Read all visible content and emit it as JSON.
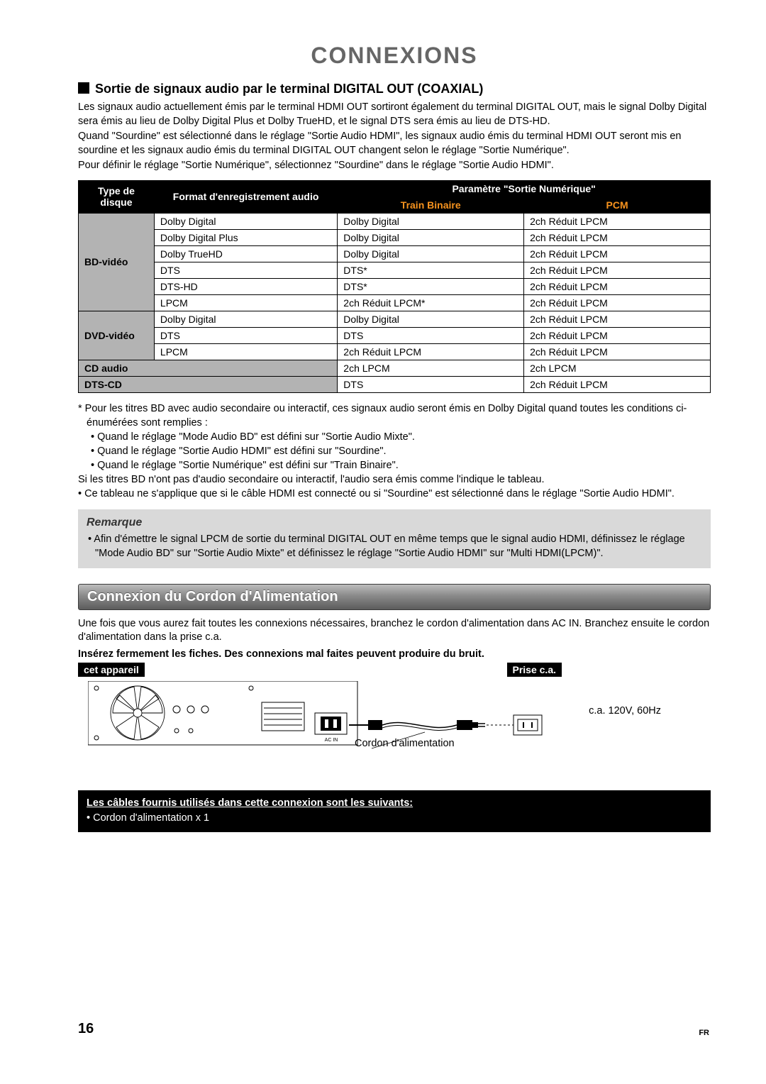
{
  "title": "CONNEXIONS",
  "subhead": "Sortie de signaux audio par le terminal DIGITAL OUT (COAXIAL)",
  "intro": [
    "Les signaux audio actuellement émis par le terminal HDMI OUT sortiront également du terminal DIGITAL OUT, mais le signal Dolby Digital sera émis au lieu de Dolby Digital Plus et Dolby TrueHD, et le signal DTS sera émis au lieu de DTS-HD.",
    "Quand \"Sourdine\" est sélectionné dans le réglage \"Sortie Audio HDMI\", les signaux audio émis du terminal HDMI OUT seront mis en sourdine et les signaux audio émis du terminal DIGITAL OUT changent selon le réglage \"Sortie Numérique\".",
    "Pour définir le réglage \"Sortie Numérique\", sélectionnez \"Sourdine\" dans le réglage \"Sortie Audio HDMI\"."
  ],
  "table": {
    "headers": {
      "disc": "Type de disque",
      "format": "Format d'enregistrement audio",
      "param": "Paramètre \"Sortie Numérique\"",
      "bin": "Train Binaire",
      "pcm": "PCM"
    },
    "header_colors": {
      "white": "#ffffff",
      "orange": "#f7931e",
      "bg": "#000000"
    },
    "disc_bg": "#b3b3b3",
    "col_widths": [
      "12%",
      "29%",
      "29.5%",
      "29.5%"
    ],
    "groups": [
      {
        "disc": "BD-vidéo",
        "rows": [
          [
            "Dolby Digital",
            "Dolby Digital",
            "2ch Réduit LPCM"
          ],
          [
            "Dolby Digital Plus",
            "Dolby Digital",
            "2ch Réduit LPCM"
          ],
          [
            "Dolby TrueHD",
            "Dolby Digital",
            "2ch Réduit LPCM"
          ],
          [
            "DTS",
            "DTS*",
            "2ch Réduit LPCM"
          ],
          [
            "DTS-HD",
            "DTS*",
            "2ch Réduit LPCM"
          ],
          [
            "LPCM",
            "2ch Réduit LPCM*",
            "2ch Réduit LPCM"
          ]
        ]
      },
      {
        "disc": "DVD-vidéo",
        "rows": [
          [
            "Dolby Digital",
            "Dolby Digital",
            "2ch Réduit LPCM"
          ],
          [
            "DTS",
            "DTS",
            "2ch Réduit LPCM"
          ],
          [
            "LPCM",
            "2ch Réduit LPCM",
            "2ch Réduit LPCM"
          ]
        ]
      },
      {
        "disc": "CD audio",
        "span": true,
        "rows": [
          [
            "2ch LPCM",
            "2ch LPCM"
          ]
        ]
      },
      {
        "disc": "DTS-CD",
        "span": true,
        "rows": [
          [
            "DTS",
            "2ch Réduit LPCM"
          ]
        ]
      }
    ]
  },
  "footnotes": {
    "star": "* Pour les titres BD avec audio secondaire ou interactif, ces signaux audio seront émis en Dolby Digital quand toutes les conditions ci-énumérées sont remplies :",
    "bullets": [
      "• Quand le réglage \"Mode Audio BD\" est défini sur \"Sortie Audio Mixte\".",
      "• Quand le réglage \"Sortie Audio HDMI\" est défini sur \"Sourdine\".",
      "• Quand le réglage \"Sortie Numérique\" est défini sur \"Train Binaire\"."
    ],
    "after": [
      "Si les titres BD n'ont pas d'audio secondaire ou interactif, l'audio sera émis comme l'indique le tableau.",
      "• Ce tableau ne s'applique que si le câble HDMI est connecté ou si \"Sourdine\" est sélectionné dans le réglage \"Sortie Audio HDMI\"."
    ]
  },
  "remark": {
    "title": "Remarque",
    "text": "• Afin d'émettre le signal LPCM de sortie du terminal DIGITAL OUT en même temps que le signal audio HDMI, définissez le réglage \"Mode Audio BD\" sur \"Sortie Audio Mixte\" et définissez le réglage \"Sortie Audio HDMI\" sur \"Multi HDMI(LPCM)\"."
  },
  "section2": {
    "title": "Connexion du Cordon d'Alimentation",
    "p1": "Une fois que vous aurez fait toutes les connexions nécessaires, branchez le cordon d'alimentation dans AC IN. Branchez ensuite le cordon d'alimentation dans la prise c.a.",
    "p2": "Insérez fermement les fiches. Des connexions mal faites peuvent produire du bruit.",
    "tag_left": "cet appareil",
    "tag_right": "Prise c.a.",
    "spec": "c.a. 120V, 60Hz",
    "cord": "Cordon d'alimentation",
    "ac_in": "AC IN"
  },
  "cable_box": {
    "head": "Les câbles fournis utilisés dans cette connexion sont les suivants:",
    "item": "• Cordon d'alimentation x 1"
  },
  "page_num": "16",
  "lang": "FR"
}
